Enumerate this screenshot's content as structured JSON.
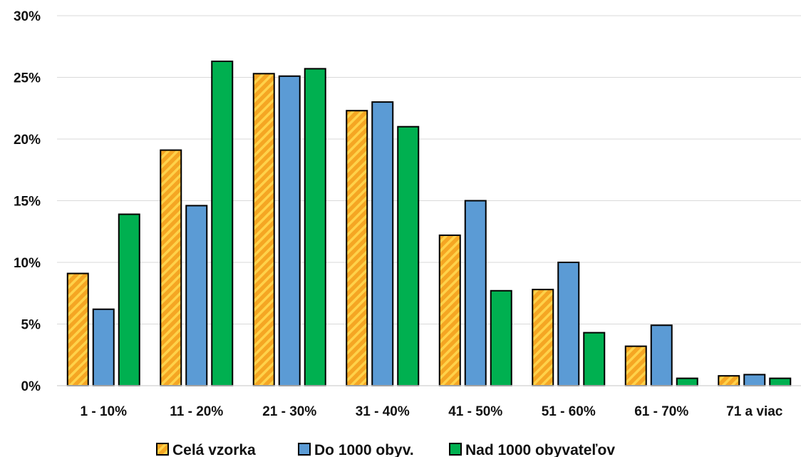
{
  "chart_data": {
    "type": "bar",
    "title": "",
    "xlabel": "",
    "ylabel": "",
    "categories": [
      "1 - 10%",
      "11 - 20%",
      "21 - 30%",
      "31 - 40%",
      "41 - 50%",
      "51 - 60%",
      "61 - 70%",
      "71 a viac"
    ],
    "ylim": [
      0,
      30
    ],
    "yticks": [
      0,
      5,
      10,
      15,
      20,
      25,
      30
    ],
    "ytick_labels": [
      "0%",
      "5%",
      "10%",
      "15%",
      "20%",
      "25%",
      "30%"
    ],
    "grid": true,
    "legend_position": "bottom",
    "series": [
      {
        "name": "Celá vzorka",
        "color": "#F5A623",
        "pattern": "diagonal-hatch",
        "values": [
          9.1,
          19.1,
          25.3,
          22.3,
          12.2,
          7.8,
          3.2,
          0.8
        ]
      },
      {
        "name": "Do 1000 obyv.",
        "color": "#5B9BD5",
        "values": [
          6.2,
          14.6,
          25.1,
          23.0,
          15.0,
          10.0,
          4.9,
          0.9
        ]
      },
      {
        "name": "Nad 1000 obyvateľov",
        "color": "#00B050",
        "values": [
          13.9,
          26.3,
          25.7,
          21.0,
          7.7,
          4.3,
          0.6,
          0.6
        ]
      }
    ]
  }
}
